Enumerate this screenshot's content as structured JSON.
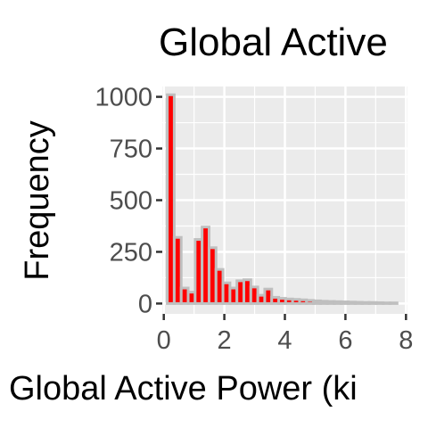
{
  "chart_data": {
    "type": "bar",
    "title": "Global Active",
    "xlabel": "Global Active Power (ki",
    "ylabel": "Frequency",
    "xlim": [
      -0.05,
      8.05
    ],
    "ylim": [
      -50,
      1050
    ],
    "x_ticks": [
      0,
      2,
      4,
      6,
      8
    ],
    "y_ticks": [
      0,
      250,
      500,
      750,
      1000
    ],
    "x_tick_labels": [
      "0",
      "2",
      "4",
      "6",
      "8"
    ],
    "y_tick_labels": [
      "0",
      "250",
      "500",
      "750",
      "1000"
    ],
    "grid": true,
    "legend": "none",
    "bin_width": 0.23,
    "bins": [
      {
        "x": 0.23,
        "count": 1010
      },
      {
        "x": 0.46,
        "count": 320
      },
      {
        "x": 0.69,
        "count": 75
      },
      {
        "x": 0.92,
        "count": 55
      },
      {
        "x": 1.15,
        "count": 310
      },
      {
        "x": 1.38,
        "count": 370
      },
      {
        "x": 1.61,
        "count": 270
      },
      {
        "x": 1.84,
        "count": 165
      },
      {
        "x": 2.07,
        "count": 100
      },
      {
        "x": 2.3,
        "count": 75
      },
      {
        "x": 2.53,
        "count": 110
      },
      {
        "x": 2.76,
        "count": 115
      },
      {
        "x": 2.99,
        "count": 80
      },
      {
        "x": 3.22,
        "count": 40
      },
      {
        "x": 3.45,
        "count": 70
      },
      {
        "x": 3.68,
        "count": 30
      },
      {
        "x": 3.91,
        "count": 25
      },
      {
        "x": 4.14,
        "count": 22
      },
      {
        "x": 4.37,
        "count": 20
      },
      {
        "x": 4.6,
        "count": 18
      },
      {
        "x": 4.83,
        "count": 15
      },
      {
        "x": 5.06,
        "count": 13
      },
      {
        "x": 5.29,
        "count": 11
      },
      {
        "x": 5.52,
        "count": 10
      },
      {
        "x": 5.75,
        "count": 9
      },
      {
        "x": 5.98,
        "count": 8
      },
      {
        "x": 6.21,
        "count": 7
      },
      {
        "x": 6.44,
        "count": 6
      },
      {
        "x": 6.67,
        "count": 5
      },
      {
        "x": 6.9,
        "count": 5
      },
      {
        "x": 7.13,
        "count": 4
      },
      {
        "x": 7.36,
        "count": 3
      },
      {
        "x": 7.59,
        "count": 3
      }
    ],
    "colors": {
      "panel_background": "#ebebeb",
      "grid": "#ffffff",
      "bar_fill": "#ff0000",
      "bar_outline": "#bfbfbf",
      "text": "#4d4d4d",
      "title": "#000000",
      "axis_ticks": "#333333"
    }
  }
}
